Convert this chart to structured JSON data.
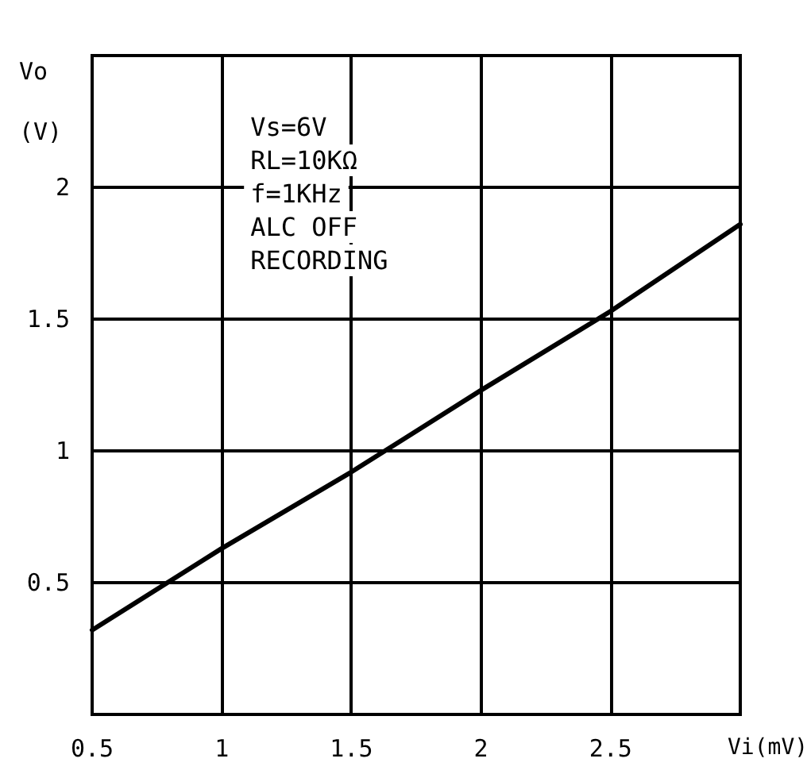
{
  "chart_data": {
    "type": "line",
    "xlabel": "Vi(mV)",
    "ylabel": "Vo\n(V)",
    "annotations": [
      "Vs=6V",
      "RL=10KΩ",
      "f=1KHz",
      "ALC OFF",
      "RECORDING"
    ],
    "x": [
      0.5,
      1,
      1.5,
      2,
      2.5,
      3
    ],
    "series": [
      {
        "color": "#000000",
        "values": [
          0.32,
          0.63,
          0.92,
          1.23,
          1.53,
          1.86
        ]
      }
    ],
    "xlim": [
      0.5,
      3
    ],
    "xticks": [
      0.5,
      1,
      1.5,
      2,
      2.5,
      {
        "value": 3,
        "label": null
      }
    ],
    "ylim": [
      0,
      2.5
    ],
    "yticks": [
      {
        "value": 0,
        "label": null
      },
      0.5,
      1,
      1.5,
      2,
      {
        "value": 2.5,
        "label": null
      }
    ],
    "grid": true,
    "marker": "none",
    "line_style": "solid"
  }
}
